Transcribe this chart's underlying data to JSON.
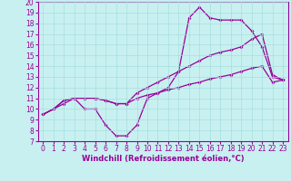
{
  "xlabel": "Windchill (Refroidissement éolien,°C)",
  "background_color": "#c8f0f0",
  "line_color": "#990099",
  "grid_color": "#a8dede",
  "xlim": [
    -0.5,
    23.5
  ],
  "ylim": [
    7,
    20
  ],
  "yticks": [
    7,
    8,
    9,
    10,
    11,
    12,
    13,
    14,
    15,
    16,
    17,
    18,
    19,
    20
  ],
  "xticks": [
    0,
    1,
    2,
    3,
    4,
    5,
    6,
    7,
    8,
    9,
    10,
    11,
    12,
    13,
    14,
    15,
    16,
    17,
    18,
    19,
    20,
    21,
    22,
    23
  ],
  "line1_x": [
    0,
    1,
    2,
    3,
    4,
    5,
    6,
    7,
    8,
    9,
    10,
    11,
    12,
    13,
    14,
    15,
    16,
    17,
    18,
    19,
    20,
    21,
    22,
    23
  ],
  "line1_y": [
    9.5,
    10.0,
    10.5,
    11.0,
    10.0,
    10.0,
    8.5,
    7.5,
    7.5,
    8.5,
    11.0,
    11.5,
    12.0,
    13.5,
    18.5,
    19.5,
    18.5,
    18.3,
    18.3,
    18.3,
    17.3,
    15.8,
    13.0,
    12.7
  ],
  "line2_x": [
    0,
    1,
    2,
    3,
    4,
    5,
    6,
    7,
    8,
    9,
    10,
    11,
    12,
    13,
    14,
    15,
    16,
    17,
    18,
    19,
    20,
    21,
    22,
    23
  ],
  "line2_y": [
    9.5,
    10.0,
    10.8,
    11.0,
    11.0,
    11.0,
    10.8,
    10.5,
    10.5,
    11.0,
    11.3,
    11.5,
    11.8,
    12.0,
    12.3,
    12.5,
    12.8,
    13.0,
    13.2,
    13.5,
    13.8,
    14.0,
    12.5,
    12.7
  ],
  "line3_x": [
    0,
    1,
    2,
    3,
    4,
    5,
    6,
    7,
    8,
    9,
    10,
    11,
    12,
    13,
    14,
    15,
    16,
    17,
    18,
    19,
    20,
    21,
    22,
    23
  ],
  "line3_y": [
    9.5,
    10.0,
    10.8,
    11.0,
    11.0,
    11.0,
    10.8,
    10.5,
    10.5,
    11.5,
    12.0,
    12.5,
    13.0,
    13.5,
    14.0,
    14.5,
    15.0,
    15.3,
    15.5,
    15.8,
    16.5,
    17.0,
    13.2,
    12.7
  ],
  "tick_fontsize": 5.5,
  "xlabel_fontsize": 6.0,
  "lw": 0.9,
  "marker_size": 2.0
}
